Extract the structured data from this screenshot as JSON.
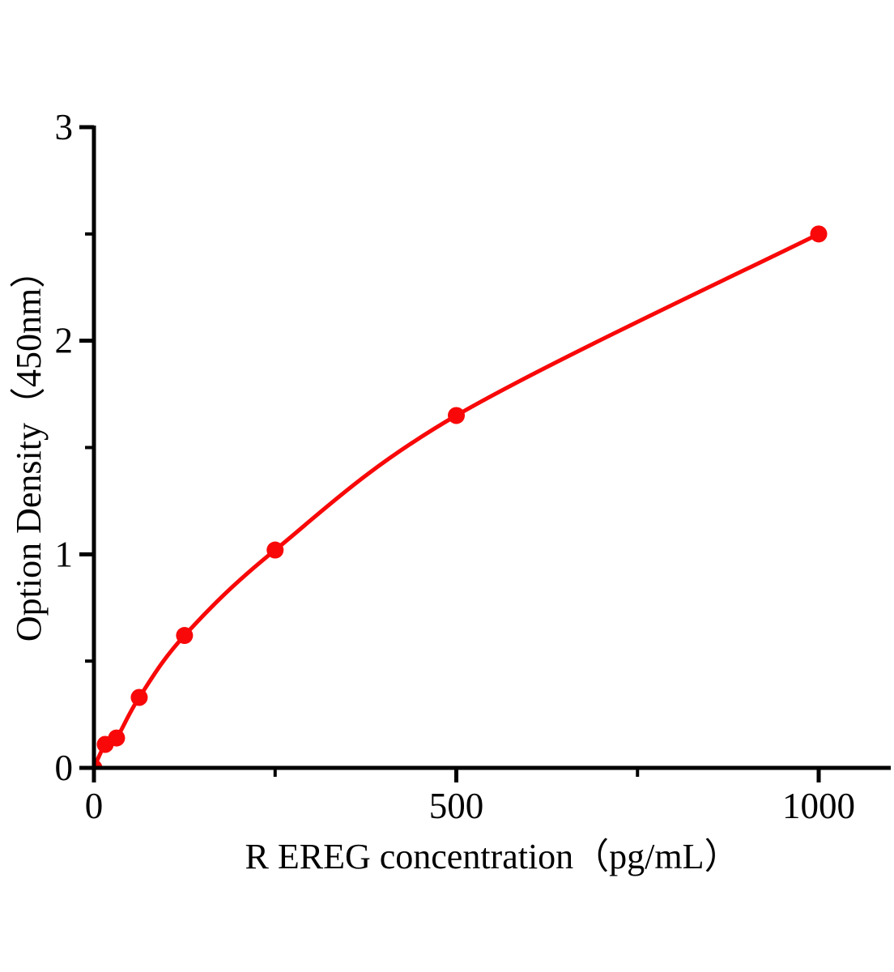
{
  "page": {
    "background_color": "#ffffff",
    "text_color": "#000000"
  },
  "chart_data": {
    "type": "line",
    "xlabel": "R EREG concentration（pg/mL）",
    "ylabel": "Option Density（450nm）",
    "x": [
      0,
      15.6,
      31.2,
      62.5,
      125,
      250,
      500,
      1000
    ],
    "y": [
      0,
      0.11,
      0.14,
      0.33,
      0.62,
      1.02,
      1.65,
      2.5
    ],
    "xlim": [
      0,
      1100
    ],
    "ylim": [
      0,
      3
    ],
    "x_major_ticks": [
      0,
      500,
      1000
    ],
    "x_minor_ticks": [
      250,
      750
    ],
    "y_major_ticks": [
      0,
      1,
      2,
      3
    ],
    "y_minor_ticks": [
      0.5,
      1.5,
      2.5
    ],
    "x_tick_labels": [
      "0",
      "500",
      "1000"
    ],
    "y_tick_labels": [
      "0",
      "1",
      "2",
      "3"
    ],
    "grid": false,
    "legend": null,
    "line_color": "#f80808",
    "marker_color": "#f80808",
    "marker_shape": "circle",
    "marker_radius": 10.5,
    "line_width": 5,
    "axis_color": "#000000"
  }
}
